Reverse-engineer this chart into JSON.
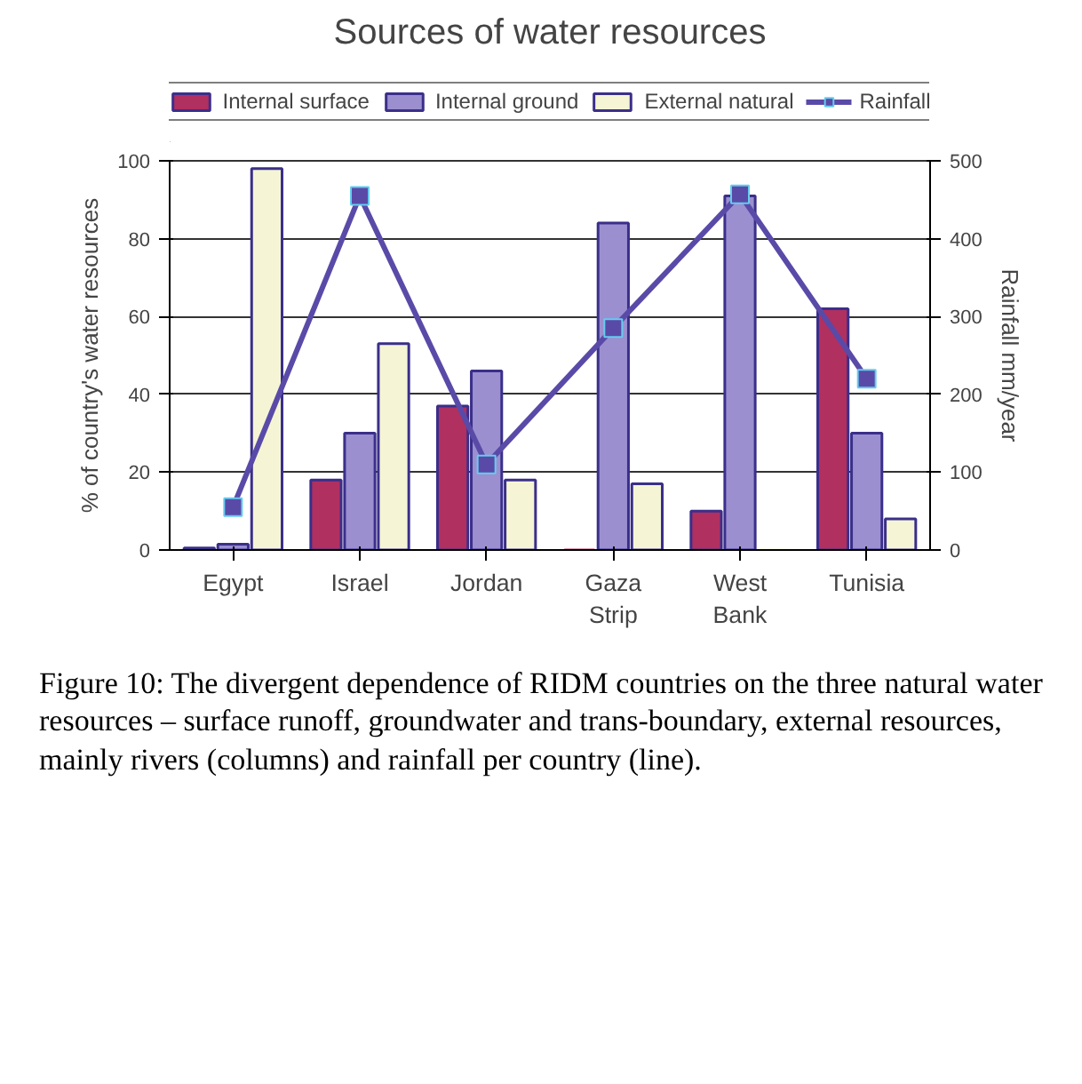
{
  "chart_data": {
    "type": "bar",
    "title": "Sources of water resources",
    "categories": [
      "Egypt",
      "Israel",
      "Jordan",
      "Gaza Strip",
      "West Bank",
      "Tunisia"
    ],
    "ylabel": "% of country's water resources",
    "y2label": "Rainfall mm/year",
    "ylim": [
      0,
      100
    ],
    "yticks": [
      0,
      20,
      40,
      60,
      80,
      100
    ],
    "y2lim": [
      0,
      500
    ],
    "y2ticks": [
      0,
      100,
      200,
      300,
      400,
      500
    ],
    "series": [
      {
        "name": "Internal surface",
        "color": "#b03060",
        "values": [
          0.5,
          18,
          37,
          0,
          10,
          62
        ]
      },
      {
        "name": "Internal ground",
        "color": "#9b8fd0",
        "values": [
          1.5,
          30,
          46,
          84,
          91,
          30
        ]
      },
      {
        "name": "External natural",
        "color": "#f5f5d5",
        "values": [
          98,
          53,
          18,
          17,
          0,
          8
        ]
      },
      {
        "name": "Rainfall",
        "type": "line",
        "axis": "y2",
        "color": "#5a4aa8",
        "marker": "square",
        "values": [
          55,
          455,
          110,
          285,
          457,
          220
        ]
      }
    ],
    "grid": "y",
    "legend": "top",
    "annotations": [
      "Figure 10: The divergent dependence of RIDM countries on the three natural water resources – surface runoff, groundwater and trans-boundary, external resources, mainly rivers (columns) and rainfall per country (line)."
    ]
  }
}
